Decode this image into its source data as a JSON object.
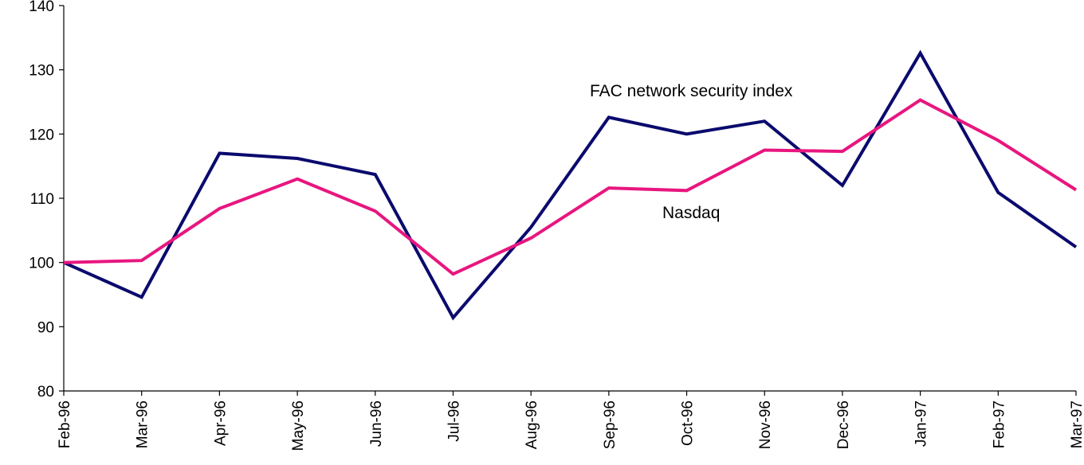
{
  "chart_data": {
    "type": "line",
    "title": "",
    "xlabel": "",
    "ylabel": "",
    "categories": [
      "Feb-96",
      "Mar-96",
      "Apr-96",
      "May-96",
      "Jun-96",
      "Jul-96",
      "Aug-96",
      "Sep-96",
      "Oct-96",
      "Nov-96",
      "Dec-96",
      "Jan-97",
      "Feb-97",
      "Mar-97"
    ],
    "ylim": [
      80,
      140
    ],
    "yticks": [
      80,
      90,
      100,
      110,
      120,
      130,
      140
    ],
    "grid": false,
    "legend": "none",
    "series": [
      {
        "name": "FAC network security index",
        "color": "#0a0a6e",
        "values": [
          100,
          94.6,
          117,
          116.2,
          113.7,
          91.4,
          105.5,
          122.6,
          120,
          122,
          112,
          132.6,
          110.9,
          102.4
        ]
      },
      {
        "name": "Nasdaq",
        "color": "#e8167f",
        "values": [
          100,
          100.3,
          108.4,
          113,
          108,
          98.2,
          103.8,
          111.6,
          111.2,
          117.5,
          117.3,
          125.3,
          119,
          111.3
        ]
      }
    ]
  }
}
